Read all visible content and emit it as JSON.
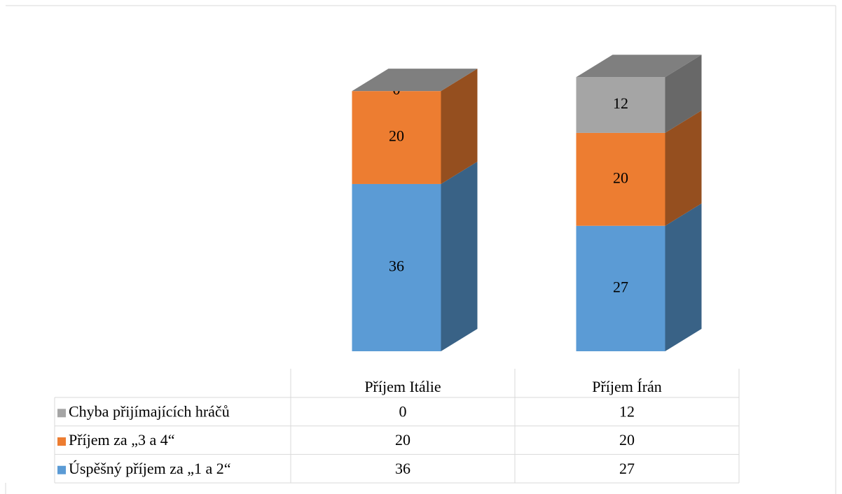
{
  "chart_data": {
    "type": "bar3d-stacked",
    "categories": [
      "Příjem Itálie",
      "Příjem Írán"
    ],
    "series": [
      {
        "name": "Úspěšný příjem za „1 a 2“",
        "color": "#5b9bd5",
        "values": [
          36,
          27
        ]
      },
      {
        "name": "Příjem za „3 a 4“",
        "color": "#ed7d31",
        "values": [
          20,
          20
        ]
      },
      {
        "name": "Chyba přijímajících hráčů",
        "color": "#a5a5a5",
        "values": [
          0,
          12
        ]
      }
    ],
    "data_table": true
  }
}
